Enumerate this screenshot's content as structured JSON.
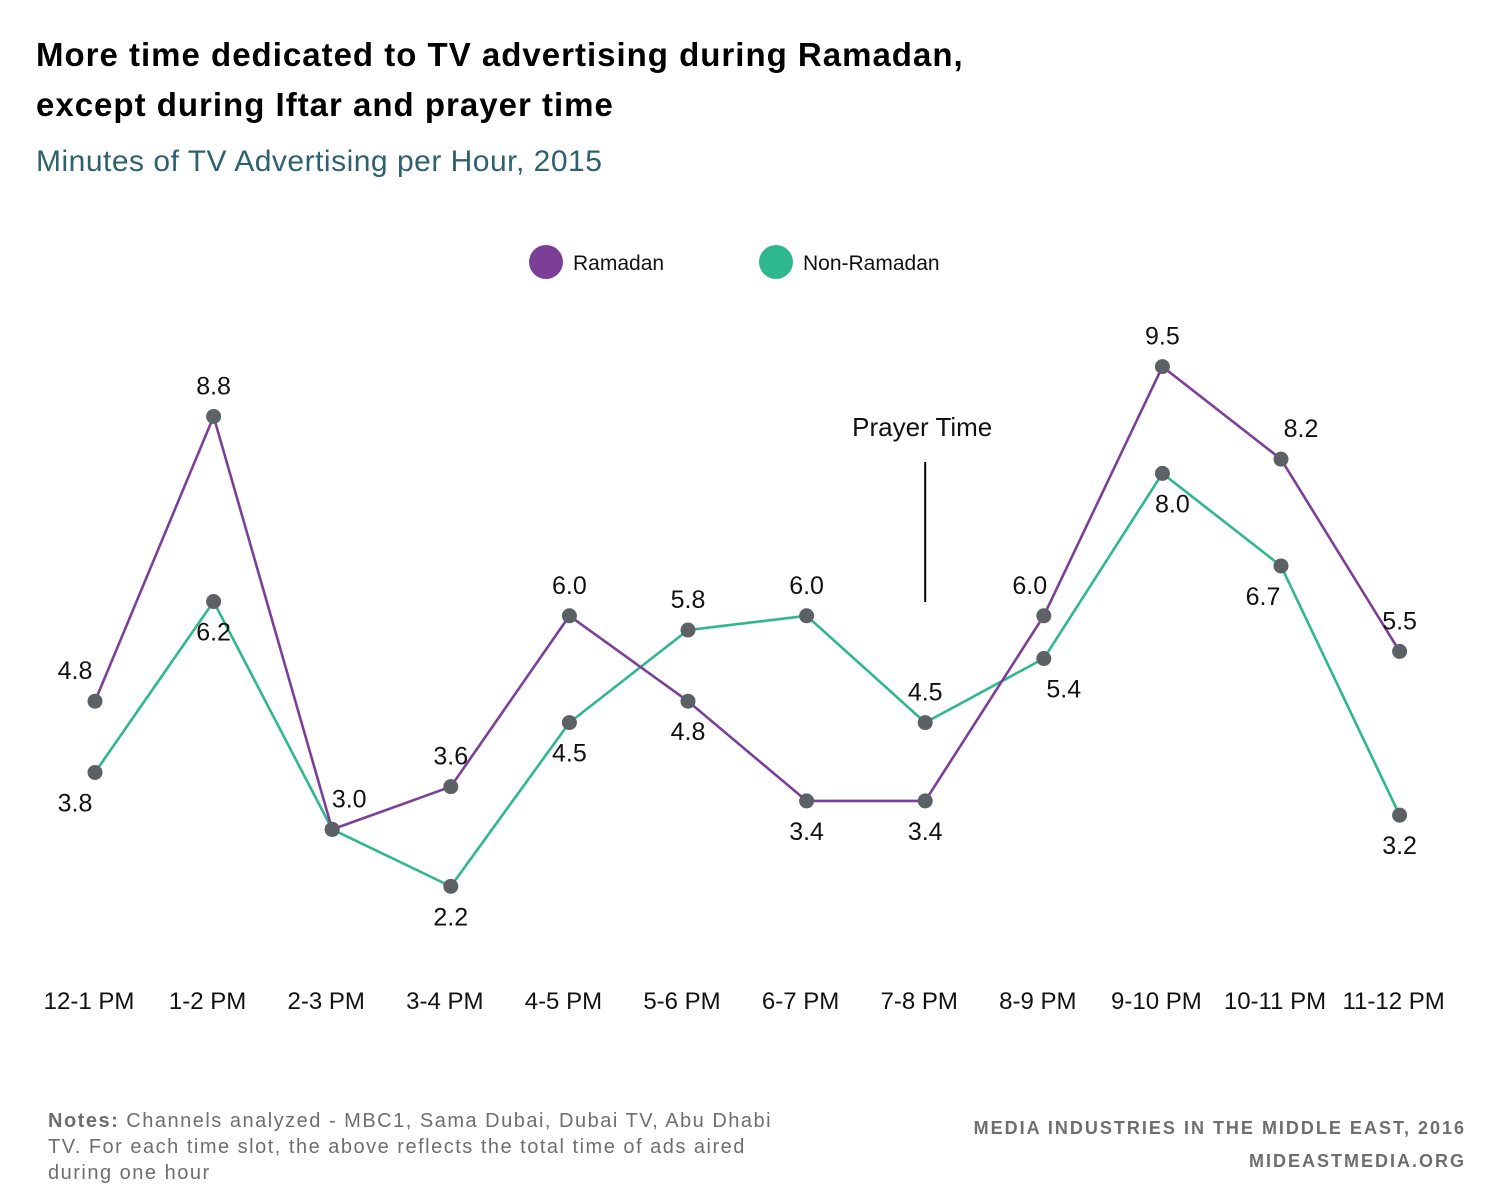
{
  "title_line1": "More time dedicated to TV advertising during Ramadan,",
  "title_line2": "except during Iftar and prayer time",
  "subtitle": "Minutes of TV Advertising per Hour, 2015",
  "notes_label": "Notes:",
  "notes_text": " Channels analyzed - MBC1, Sama Dubai, Dubai TV, Abu Dhabi TV. For each time slot, the above reflects the total time of ads aired during one hour",
  "credit_line1": "MEDIA INDUSTRIES IN THE MIDDLE EAST, 2016",
  "credit_line2": "MIDEASTMEDIA.ORG",
  "colors": {
    "ramadan": "#7b3f98",
    "non_ramadan": "#2fb88e",
    "marker": "#5c6166"
  },
  "chart_data": {
    "type": "line",
    "categories": [
      "12-1 PM",
      "1-2 PM",
      "2-3 PM",
      "3-4 PM",
      "4-5 PM",
      "5-6 PM",
      "6-7 PM",
      "7-8 PM",
      "8-9 PM",
      "9-10 PM",
      "10-11 PM",
      "11-12 PM"
    ],
    "series": [
      {
        "name": "Ramadan",
        "values": [
          4.8,
          8.8,
          3.0,
          3.6,
          6.0,
          4.8,
          3.4,
          3.4,
          6.0,
          9.5,
          8.2,
          5.5
        ],
        "labels": [
          "4.8",
          "8.8",
          "3.0",
          "3.6",
          "6.0",
          "4.8",
          "3.4",
          "3.4",
          "6.0",
          "9.5",
          "8.2",
          "5.5"
        ]
      },
      {
        "name": "Non-Ramadan",
        "values": [
          3.8,
          6.2,
          3.0,
          2.2,
          4.5,
          5.8,
          6.0,
          4.5,
          5.4,
          8.0,
          6.7,
          3.2
        ],
        "labels": [
          "3.8",
          "6.2",
          "",
          "2.2",
          "4.5",
          "5.8",
          "6.0",
          "4.5",
          "5.4",
          "8.0",
          "6.7",
          "3.2"
        ]
      }
    ],
    "annotation": {
      "text": "Prayer Time",
      "category": "7-8 PM"
    },
    "legend_position": "top-center",
    "grid": false
  }
}
